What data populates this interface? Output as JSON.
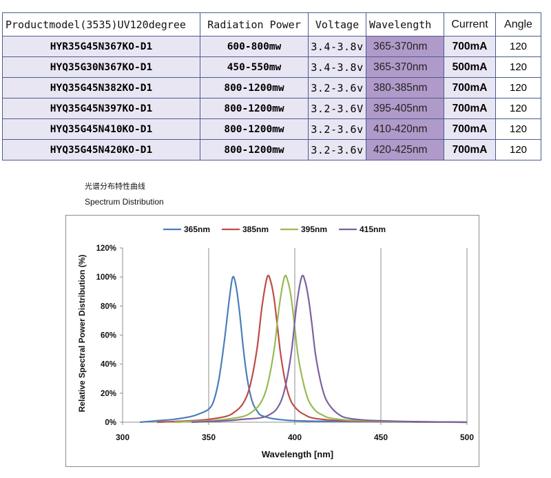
{
  "table": {
    "headers": {
      "model": "Productmodel(3535)UV120degree",
      "power": "Radiation Power",
      "voltage": "Voltage",
      "wavelength": "Wavelength",
      "current": "Current",
      "angle": "Angle"
    },
    "rows": [
      {
        "model": "HYR35G45N367KO-D1",
        "power": "600-800mw",
        "voltage": "3.4-3.8v",
        "wavelength": "365-370nm",
        "current": "700mA",
        "angle": "120"
      },
      {
        "model": "HYQ35G30N367KO-D1",
        "power": "450-550mw",
        "voltage": "3.4-3.8v",
        "wavelength": "365-370nm",
        "current": "500mA",
        "angle": "120"
      },
      {
        "model": "HYQ35G45N382KO-D1",
        "power": "800-1200mw",
        "voltage": "3.2-3.6v",
        "wavelength": "380-385nm",
        "current": "700mA",
        "angle": "120"
      },
      {
        "model": "HYQ35G45N397KO-D1",
        "power": "800-1200mw",
        "voltage": "3.2-3.6V",
        "wavelength": "395-405nm",
        "current": "700mA",
        "angle": "120"
      },
      {
        "model": "HYQ35G45N410KO-D1",
        "power": "800-1200mw",
        "voltage": "3.2-3.6v",
        "wavelength": "410-420nm",
        "current": "700mA",
        "angle": "120"
      },
      {
        "model": "HYQ35G45N420KO-D1",
        "power": "800-1200mw",
        "voltage": "3.2-3.6v",
        "wavelength": "420-425nm",
        "current": "700mA",
        "angle": "120"
      }
    ]
  },
  "captions": {
    "chinese": "光谱分布特性曲线",
    "english": "Spectrum Distribution"
  },
  "chart_data": {
    "type": "line",
    "title": "Spectrum Distribution",
    "xlabel": "Wavelength  [nm]",
    "ylabel": "Relative Spectral Power Distribution (%)",
    "xlim": [
      300,
      500
    ],
    "ylim": [
      0,
      120
    ],
    "xticks": [
      300,
      350,
      400,
      450,
      500
    ],
    "yticks": [
      0,
      20,
      40,
      60,
      80,
      100,
      120
    ],
    "ytick_labels": [
      "0%",
      "20%",
      "40%",
      "60%",
      "80%",
      "100%",
      "120%"
    ],
    "grid": "vertical",
    "legend_position": "top",
    "series": [
      {
        "name": "365nm",
        "color": "#4a7ebb",
        "x": [
          310,
          320,
          330,
          340,
          345,
          350,
          353,
          356,
          359,
          362,
          364,
          366,
          368,
          370,
          372,
          374,
          376,
          378,
          380,
          385,
          390,
          400,
          420,
          450,
          500
        ],
        "y": [
          0,
          1,
          2,
          4,
          6,
          9,
          15,
          30,
          55,
          85,
          100,
          93,
          75,
          52,
          33,
          20,
          12,
          8,
          5,
          3,
          2,
          1,
          0.5,
          0.2,
          0
        ]
      },
      {
        "name": "385nm",
        "color": "#be4b48",
        "x": [
          320,
          340,
          350,
          360,
          365,
          370,
          374,
          378,
          381,
          384,
          386,
          388,
          390,
          392,
          395,
          398,
          402,
          406,
          410,
          420,
          430,
          450,
          500
        ],
        "y": [
          0,
          1,
          2,
          4,
          7,
          13,
          25,
          50,
          80,
          100,
          97,
          85,
          65,
          45,
          25,
          14,
          8,
          5,
          3,
          1.5,
          1,
          0.4,
          0
        ]
      },
      {
        "name": "395nm",
        "color": "#98b954",
        "x": [
          330,
          350,
          360,
          370,
          375,
          380,
          384,
          388,
          391,
          394,
          396,
          398,
          400,
          402,
          405,
          408,
          412,
          416,
          420,
          430,
          440,
          460,
          500
        ],
        "y": [
          0,
          1,
          2,
          4,
          7,
          13,
          25,
          50,
          80,
          100,
          97,
          85,
          65,
          45,
          27,
          15,
          8,
          5,
          3,
          1.5,
          1,
          0.4,
          0
        ]
      },
      {
        "name": "415nm",
        "color": "#7d60a0",
        "x": [
          340,
          360,
          370,
          380,
          385,
          390,
          394,
          398,
          401,
          404,
          406,
          408,
          410,
          412,
          415,
          418,
          422,
          426,
          430,
          440,
          450,
          470,
          500
        ],
        "y": [
          0,
          1,
          2,
          3,
          5,
          10,
          22,
          48,
          80,
          100,
          97,
          85,
          67,
          47,
          28,
          16,
          9,
          5,
          3,
          1.5,
          1,
          0.4,
          0
        ]
      }
    ]
  }
}
